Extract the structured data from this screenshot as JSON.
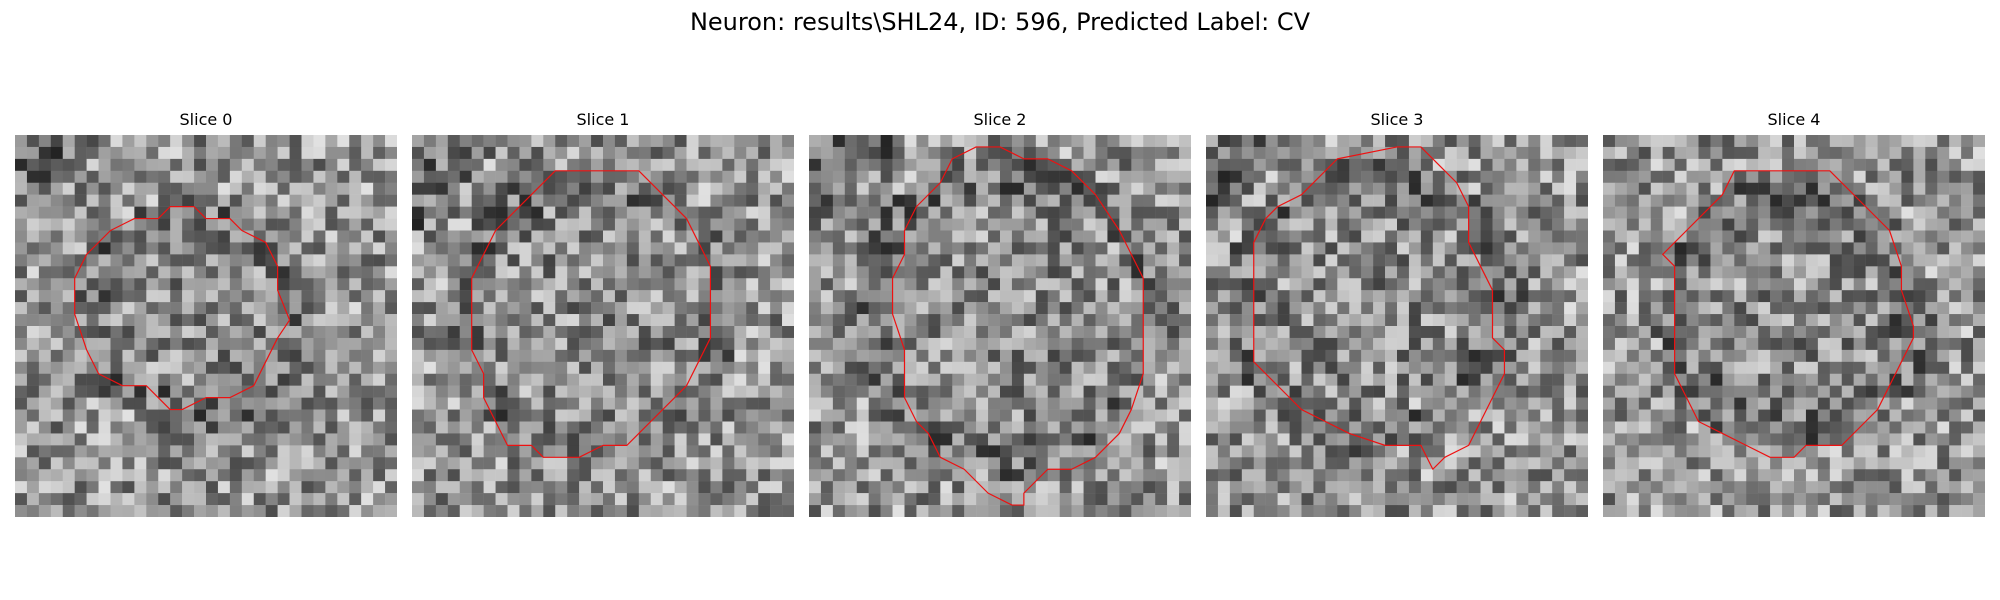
{
  "title": "Neuron: results\\SHL24, ID: 596, Predicted Label: CV",
  "contour_color": "#ee1111",
  "image_colormap": "gray",
  "panels": [
    {
      "title": "Slice 0"
    },
    {
      "title": "Slice 1"
    },
    {
      "title": "Slice 2"
    },
    {
      "title": "Slice 3"
    },
    {
      "title": "Slice 4"
    }
  ]
}
